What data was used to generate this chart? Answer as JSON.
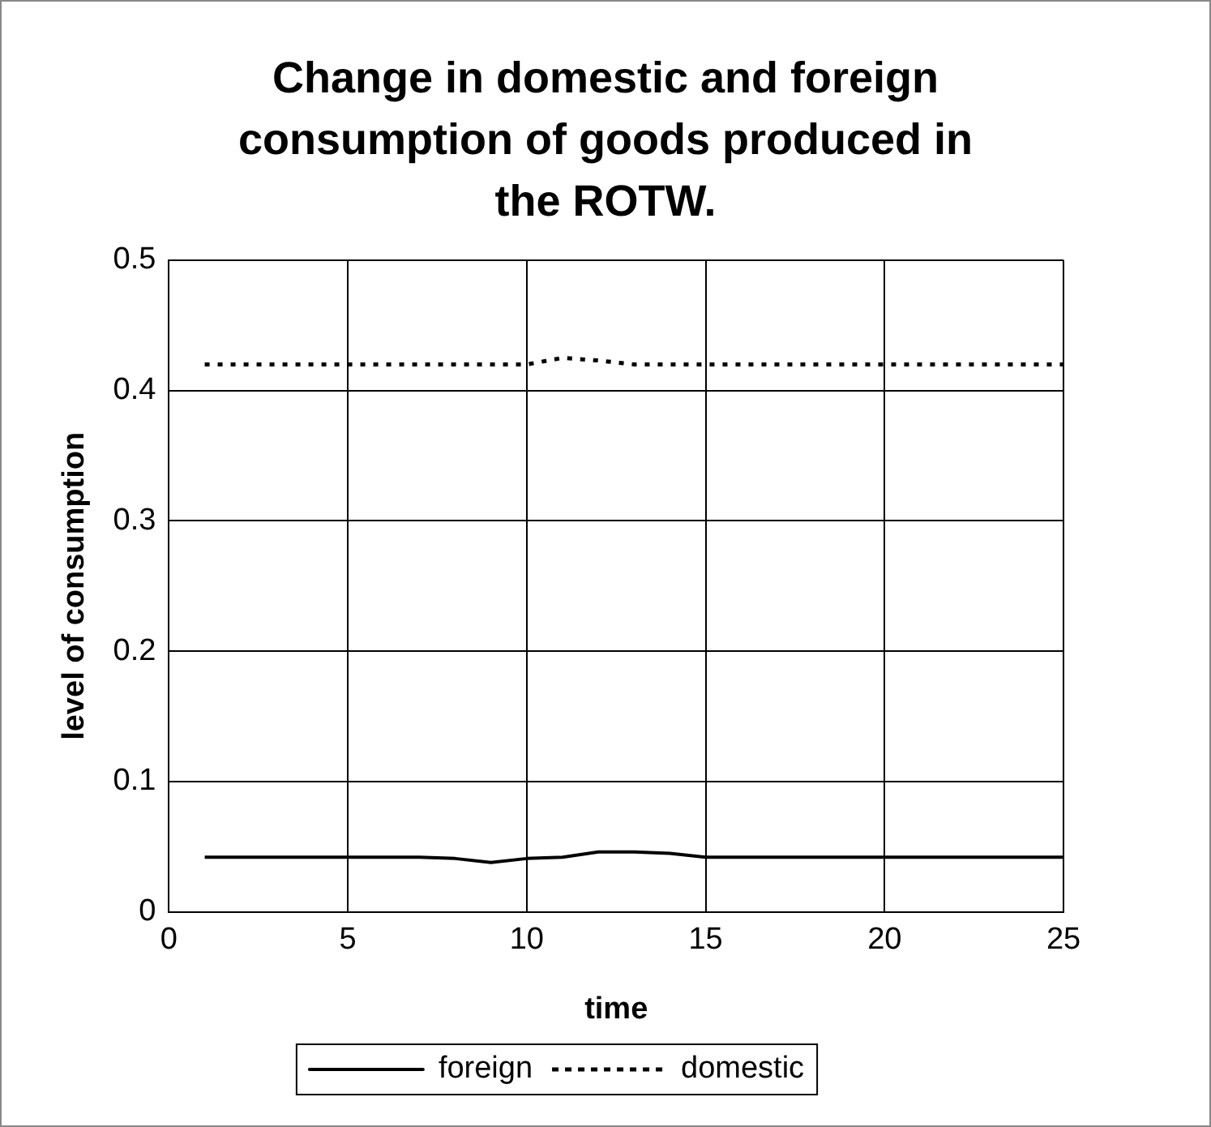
{
  "chart_data": {
    "type": "line",
    "title": "Change in domestic and foreign consumption of goods produced in the ROTW.",
    "xlabel": "time",
    "ylabel": "level of consumption",
    "x": [
      1,
      2,
      3,
      4,
      5,
      6,
      7,
      8,
      9,
      10,
      11,
      12,
      13,
      14,
      15,
      16,
      17,
      18,
      19,
      20,
      21,
      22,
      23,
      24,
      25
    ],
    "series": [
      {
        "name": "foreign",
        "color": "#000000",
        "line_style": "solid",
        "values": [
          0.042,
          0.042,
          0.042,
          0.042,
          0.042,
          0.042,
          0.042,
          0.041,
          0.038,
          0.041,
          0.042,
          0.046,
          0.046,
          0.045,
          0.042,
          0.042,
          0.042,
          0.042,
          0.042,
          0.042,
          0.042,
          0.042,
          0.042,
          0.042,
          0.042
        ]
      },
      {
        "name": "domestic",
        "color": "#000000",
        "line_style": "dotted",
        "values": [
          0.42,
          0.42,
          0.42,
          0.42,
          0.42,
          0.42,
          0.42,
          0.42,
          0.42,
          0.42,
          0.425,
          0.423,
          0.42,
          0.42,
          0.42,
          0.42,
          0.42,
          0.42,
          0.42,
          0.42,
          0.42,
          0.42,
          0.42,
          0.42,
          0.42
        ]
      }
    ],
    "xlim": [
      0,
      25
    ],
    "xticks": [
      0,
      5,
      10,
      15,
      20,
      25
    ],
    "ylim": [
      0,
      0.5
    ],
    "yticks": [
      0,
      0.1,
      0.2,
      0.3,
      0.4,
      0.5
    ],
    "grid": true,
    "legend": "bottom",
    "marker": "none"
  }
}
